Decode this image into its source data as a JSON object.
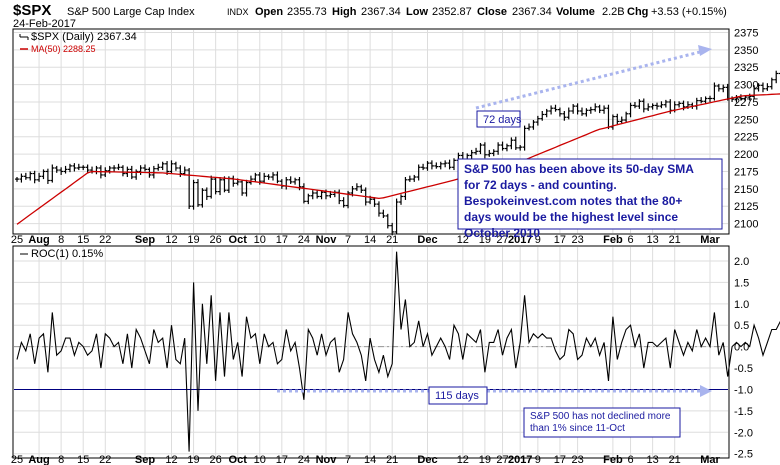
{
  "header": {
    "symbol": "$SPX",
    "name": "S&P 500 Large Cap Index",
    "exchange": "INDX",
    "date": "24-Feb-2017",
    "open_label": "Open",
    "open": "2355.73",
    "high_label": "High",
    "high": "2367.34",
    "low_label": "Low",
    "low": "2352.87",
    "close_label": "Close",
    "close": "2367.34",
    "volume_label": "Volume",
    "volume": "2.2B",
    "change_label": "Chg",
    "change": "+3.53 (+0.15%)"
  },
  "colors": {
    "price_bars": "#000000",
    "ma_line": "#cc0000",
    "annotation": "#1a1aa0",
    "arrow": "#a9b4ee",
    "box_fill": "#ffffff",
    "grid": "#dddddd",
    "zero_line": "#999999",
    "threshold_line": "#000080"
  },
  "chart_data": [
    {
      "type": "ohlc",
      "panel": "price",
      "title": "$SPX (Daily) 2367.34",
      "legend": [
        "$SPX (Daily) 2367.34",
        "MA(50) 2288.25"
      ],
      "ylim": [
        2085,
        2380
      ],
      "yticks": [
        2100,
        2125,
        2150,
        2175,
        2200,
        2225,
        2250,
        2275,
        2300,
        2325,
        2350,
        2375
      ],
      "grid": true,
      "series": [
        {
          "name": "$SPX (Daily)",
          "close": [
            2164,
            2168,
            2166,
            2172,
            2163,
            2168,
            2175,
            2162,
            2180,
            2177,
            2175,
            2178,
            2183,
            2180,
            2181,
            2181,
            2177,
            2175,
            2180,
            2170,
            2176,
            2180,
            2180,
            2181,
            2172,
            2178,
            2167,
            2175,
            2180,
            2178,
            2170,
            2179,
            2181,
            2186,
            2175,
            2186,
            2180,
            2172,
            2177,
            2125,
            2159,
            2127,
            2148,
            2139,
            2164,
            2146,
            2163,
            2148,
            2165,
            2158,
            2160,
            2144,
            2159,
            2164,
            2170,
            2161,
            2168,
            2167,
            2170,
            2161,
            2154,
            2163,
            2160,
            2163,
            2153,
            2132,
            2140,
            2144,
            2139,
            2145,
            2140,
            2142,
            2145,
            2133,
            2126,
            2144,
            2150,
            2153,
            2148,
            2131,
            2135,
            2128,
            2115,
            2111,
            2097,
            2088,
            2131,
            2139,
            2163,
            2164,
            2167,
            2181,
            2180,
            2187,
            2183,
            2182,
            2186,
            2187,
            2181,
            2191,
            2198,
            2192,
            2198,
            2202,
            2204,
            2213,
            2199,
            2201,
            2204,
            2213,
            2208,
            2212,
            2220,
            2209,
            2210,
            2237,
            2239,
            2246,
            2251,
            2257,
            2262,
            2266,
            2264,
            2258,
            2253,
            2262,
            2269,
            2262,
            2258,
            2263,
            2264,
            2268,
            2263,
            2266,
            2239,
            2254,
            2247,
            2249,
            2258,
            2270,
            2269,
            2276,
            2265,
            2268,
            2270,
            2269,
            2271,
            2275,
            2263,
            2271,
            2273,
            2268,
            2271,
            2269,
            2277,
            2276,
            2280,
            2280,
            2298,
            2294,
            2296,
            2280,
            2279,
            2281,
            2280,
            2282,
            2283,
            2294,
            2299,
            2294,
            2297,
            2307,
            2316,
            2329,
            2328,
            2337,
            2349,
            2351,
            2364,
            2362,
            2364,
            2367
          ]
        },
        {
          "name": "MA(50)",
          "values": [
            2099,
            2175,
            2173,
            2164,
            2150,
            2136,
            2162,
            2192,
            2235,
            2262,
            2284,
            2289
          ]
        }
      ],
      "annotations": {
        "arrow_label": "72 days",
        "note": "S&P 500 has been above its 50-day SMA for 72 days - and counting. Bespokeinvest.com notes that the 80+ days would be the highest level since October 2010"
      }
    },
    {
      "type": "line",
      "panel": "indicator",
      "title": "ROC(1) 0.15%",
      "ylim": [
        -2.6,
        2.35
      ],
      "yticks": [
        -2.5,
        -2.0,
        -1.5,
        -1.0,
        -0.5,
        0.0,
        0.5,
        1.0,
        1.5,
        2.0
      ],
      "grid": true,
      "reference_lines": [
        0.0,
        -1.0
      ],
      "series": [
        {
          "name": "ROC(1)",
          "values": [
            -0.3,
            0.1,
            -0.1,
            0.3,
            -0.4,
            0.2,
            0.3,
            -0.6,
            0.8,
            -0.2,
            -0.1,
            0.2,
            0.2,
            -0.2,
            0.1,
            0.0,
            -0.2,
            -0.1,
            0.3,
            -0.5,
            0.3,
            0.2,
            0.0,
            0.1,
            -0.4,
            0.3,
            -0.5,
            0.4,
            0.2,
            -0.1,
            -0.4,
            0.4,
            0.1,
            0.2,
            -0.5,
            0.5,
            -0.3,
            -0.4,
            0.2,
            -2.45,
            1.5,
            -1.5,
            1.0,
            -0.4,
            1.2,
            -0.8,
            0.8,
            -0.7,
            0.8,
            -0.3,
            0.1,
            -0.7,
            0.7,
            0.2,
            0.3,
            -0.4,
            0.3,
            0.0,
            0.1,
            -0.4,
            -0.3,
            0.4,
            -0.1,
            0.1,
            -0.5,
            -1.24,
            0.4,
            0.2,
            -0.2,
            0.3,
            -0.2,
            0.1,
            0.2,
            -0.6,
            -0.3,
            0.8,
            0.3,
            0.1,
            -0.2,
            -0.8,
            0.2,
            -0.3,
            -0.6,
            -0.2,
            -0.7,
            -0.4,
            2.22,
            0.4,
            1.1,
            0.0,
            0.1,
            0.6,
            0.0,
            0.3,
            -0.2,
            0.0,
            0.2,
            0.0,
            -0.3,
            0.5,
            0.3,
            -0.3,
            0.3,
            0.2,
            0.1,
            0.4,
            -0.6,
            0.1,
            0.1,
            0.4,
            -0.2,
            0.2,
            0.4,
            -0.5,
            0.1,
            1.2,
            0.1,
            0.3,
            0.2,
            0.3,
            0.2,
            0.2,
            -0.1,
            -0.3,
            -0.2,
            0.4,
            0.3,
            -0.3,
            -0.2,
            0.2,
            0.0,
            0.2,
            -0.2,
            0.1,
            -0.8,
            0.7,
            -0.3,
            0.1,
            0.4,
            0.5,
            0.0,
            0.3,
            -0.5,
            0.1,
            0.1,
            0.0,
            0.1,
            0.2,
            -0.5,
            0.4,
            0.1,
            -0.2,
            0.1,
            -0.1,
            0.4,
            0.0,
            0.2,
            0.0,
            0.8,
            -0.2,
            0.1,
            -0.7,
            0.0,
            0.1,
            0.0,
            0.1,
            0.0,
            0.5,
            0.2,
            -0.2,
            0.1,
            0.4,
            0.4,
            0.6,
            0.0,
            0.4,
            0.5,
            0.1,
            0.6,
            -0.1,
            0.1,
            0.15
          ]
        }
      ],
      "annotations": {
        "arrow_label": "115 days",
        "note": "S&P 500 has not declined more than 1% since 11-Oct"
      }
    }
  ],
  "x_axis": {
    "ticks": [
      {
        "label": "25",
        "bold": false,
        "day": 0
      },
      {
        "label": "Aug",
        "bold": true,
        "day": 5
      },
      {
        "label": "8",
        "bold": false,
        "day": 10
      },
      {
        "label": "15",
        "bold": false,
        "day": 15
      },
      {
        "label": "22",
        "bold": false,
        "day": 20
      },
      {
        "label": "Sep",
        "bold": true,
        "day": 29
      },
      {
        "label": "12",
        "bold": false,
        "day": 35
      },
      {
        "label": "19",
        "bold": false,
        "day": 40
      },
      {
        "label": "26",
        "bold": false,
        "day": 45
      },
      {
        "label": "Oct",
        "bold": true,
        "day": 50
      },
      {
        "label": "10",
        "bold": false,
        "day": 55
      },
      {
        "label": "17",
        "bold": false,
        "day": 60
      },
      {
        "label": "24",
        "bold": false,
        "day": 65
      },
      {
        "label": "Nov",
        "bold": true,
        "day": 70
      },
      {
        "label": "7",
        "bold": false,
        "day": 75
      },
      {
        "label": "14",
        "bold": false,
        "day": 80
      },
      {
        "label": "21",
        "bold": false,
        "day": 85
      },
      {
        "label": "Dec",
        "bold": true,
        "day": 93
      },
      {
        "label": "12",
        "bold": false,
        "day": 101
      },
      {
        "label": "19",
        "bold": false,
        "day": 106
      },
      {
        "label": "27",
        "bold": false,
        "day": 110
      },
      {
        "label": "2017",
        "bold": true,
        "day": 114
      },
      {
        "label": "9",
        "bold": false,
        "day": 118
      },
      {
        "label": "17",
        "bold": false,
        "day": 123
      },
      {
        "label": "23",
        "bold": false,
        "day": 127
      },
      {
        "label": "Feb",
        "bold": true,
        "day": 135
      },
      {
        "label": "6",
        "bold": false,
        "day": 139
      },
      {
        "label": "13",
        "bold": false,
        "day": 144
      },
      {
        "label": "21",
        "bold": false,
        "day": 149
      },
      {
        "label": "Mar",
        "bold": true,
        "day": 157
      }
    ]
  }
}
